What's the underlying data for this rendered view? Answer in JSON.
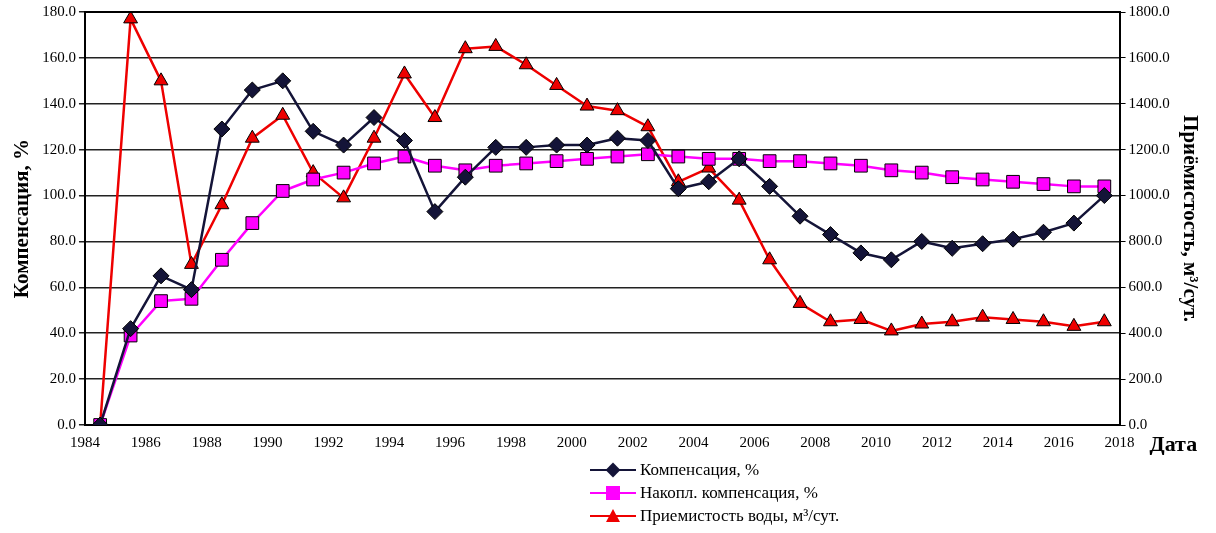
{
  "chart_data": {
    "type": "line",
    "xlabel": "Дата",
    "ylabel": "Компенсация, %",
    "y2label": "Приёмистость, м³/сут.",
    "xlim": [
      1984,
      2018
    ],
    "xticks": [
      1984,
      1986,
      1988,
      1990,
      1992,
      1994,
      1996,
      1998,
      2000,
      2002,
      2004,
      2006,
      2008,
      2010,
      2012,
      2014,
      2016,
      2018
    ],
    "ylim": [
      0,
      180
    ],
    "yticks": [
      {
        "value": 0,
        "label": "0.0"
      },
      {
        "value": 20,
        "label": "20.0"
      },
      {
        "value": 40,
        "label": "40.0"
      },
      {
        "value": 60,
        "label": "60.0"
      },
      {
        "value": 80,
        "label": "80.0"
      },
      {
        "value": 100,
        "label": "100.0"
      },
      {
        "value": 120,
        "label": "120.0"
      },
      {
        "value": 140,
        "label": "140.0"
      },
      {
        "value": 160,
        "label": "160.0"
      },
      {
        "value": 180,
        "label": "180.0"
      }
    ],
    "y2lim": [
      0,
      1800
    ],
    "y2ticks": [
      {
        "value": 0,
        "label": "0.0"
      },
      {
        "value": 200,
        "label": "200.0"
      },
      {
        "value": 400,
        "label": "400.0"
      },
      {
        "value": 600,
        "label": "600.0"
      },
      {
        "value": 800,
        "label": "800.0"
      },
      {
        "value": 1000,
        "label": "1000.0"
      },
      {
        "value": 1200,
        "label": "1200.0"
      },
      {
        "value": 1400,
        "label": "1400.0"
      },
      {
        "value": 1600,
        "label": "1600.0"
      },
      {
        "value": 1800,
        "label": "1800.0"
      }
    ],
    "x": [
      1984.5,
      1985.5,
      1986.5,
      1987.5,
      1988.5,
      1989.5,
      1990.5,
      1991.5,
      1992.5,
      1993.5,
      1994.5,
      1995.5,
      1996.5,
      1997.5,
      1998.5,
      1999.5,
      2000.5,
      2001.5,
      2002.5,
      2003.5,
      2004.5,
      2005.5,
      2006.5,
      2007.5,
      2008.5,
      2009.5,
      2010.5,
      2011.5,
      2012.5,
      2013.5,
      2014.5,
      2015.5,
      2016.5,
      2017.5
    ],
    "grid": "y",
    "legend": "bottom",
    "line_style": "solid",
    "series": [
      {
        "name": "Компенсация, %",
        "color": "#141438",
        "marker": "diamond",
        "values": [
          0,
          42,
          65,
          59,
          129,
          146,
          150,
          128,
          122,
          134,
          124,
          93,
          108,
          121,
          121,
          122,
          122,
          125,
          124,
          103,
          106,
          116,
          104,
          91,
          83,
          75,
          72,
          80,
          77,
          79,
          81,
          84,
          88,
          100
        ]
      },
      {
        "name": "Накопл. компенсация, %",
        "color": "#ff00ff",
        "marker": "square",
        "values": [
          0,
          39,
          54,
          55,
          72,
          88,
          102,
          107,
          110,
          114,
          117,
          113,
          111,
          113,
          114,
          115,
          116,
          117,
          118,
          117,
          116,
          116,
          115,
          115,
          114,
          113,
          111,
          110,
          108,
          107,
          106,
          105,
          104,
          104
        ]
      },
      {
        "name": "Приемистость воды, м³/сут.",
        "color": "#ee0000",
        "marker": "triangle",
        "axis": "y2",
        "values": [
          0,
          1770,
          1500,
          700,
          960,
          1250,
          1350,
          1100,
          990,
          1250,
          1530,
          1340,
          1640,
          1650,
          1570,
          1480,
          1390,
          1370,
          1300,
          1060,
          1120,
          980,
          720,
          530,
          450,
          460,
          410,
          440,
          450,
          470,
          460,
          450,
          430,
          450
        ]
      }
    ]
  }
}
